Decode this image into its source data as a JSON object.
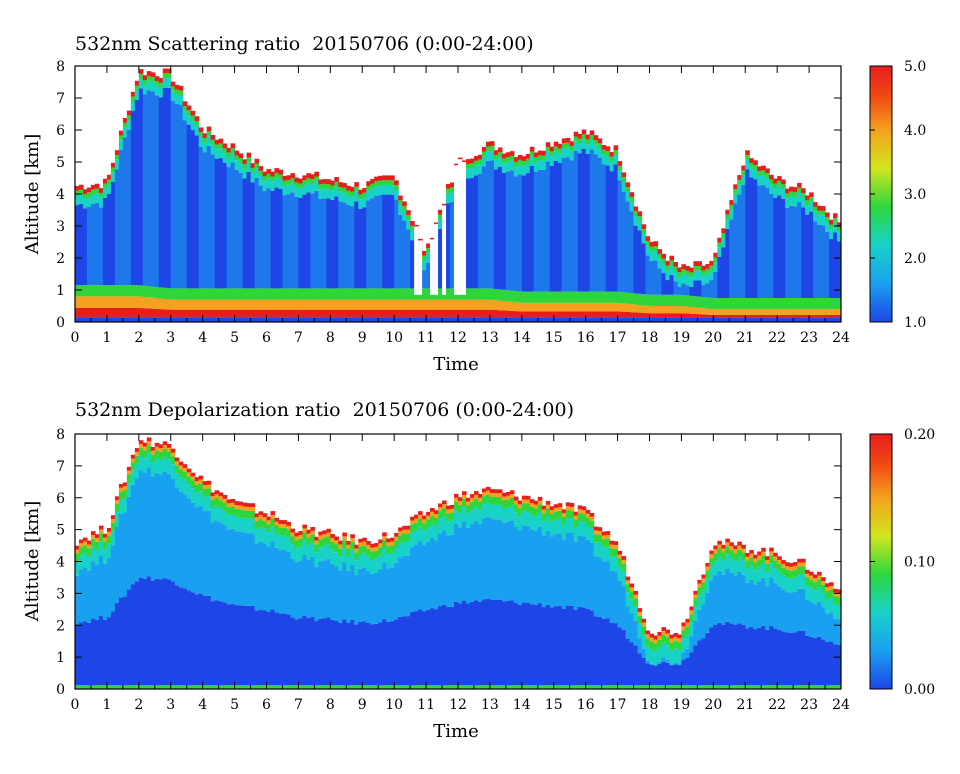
{
  "charts": [
    {
      "title": "532nm Scattering ratio  20150706 (0:00-24:00)",
      "xlabel": "Time",
      "ylabel": "Altitude [km]"
    },
    {
      "title": "532nm Depolarization ratio  20150706 (0:00-24:00)",
      "xlabel": "Time",
      "ylabel": "Altitude [km]"
    }
  ],
  "chart_data": [
    {
      "type": "heatmap",
      "title": "532nm Scattering ratio  20150706 (0:00-24:00)",
      "xlabel": "Time",
      "ylabel": "Altitude [km]",
      "xlim": [
        0,
        24
      ],
      "ylim": [
        0,
        8
      ],
      "x_ticks": [
        "0",
        "1",
        "2",
        "3",
        "4",
        "5",
        "6",
        "7",
        "8",
        "9",
        "10",
        "11",
        "12",
        "13",
        "14",
        "15",
        "16",
        "17",
        "18",
        "19",
        "20",
        "21",
        "22",
        "23",
        "24"
      ],
      "y_ticks": [
        "0",
        "1",
        "2",
        "3",
        "4",
        "5",
        "6",
        "7",
        "8"
      ],
      "colorbar": {
        "range": [
          1.0,
          5.0
        ],
        "tick_labels": [
          "1.0",
          "2.0",
          "3.0",
          "4.0",
          "5.0"
        ],
        "colors": [
          "#1e46e6",
          "#19a0f0",
          "#18d2c8",
          "#2ed63c",
          "#d2e61e",
          "#f5a01e",
          "#f04a14",
          "#e61e1e"
        ]
      },
      "cloud_top_km": [
        4.2,
        4.3,
        7.8,
        7.7,
        6.0,
        5.4,
        4.7,
        4.6,
        4.4,
        4.2,
        4.5,
        2.2,
        5.0,
        5.5,
        5.2,
        5.6,
        5.9,
        5.3,
        2.5,
        1.6,
        1.8,
        5.2,
        4.4,
        4.0,
        3.0
      ],
      "boundary_layer_top_km": [
        0.8,
        0.8,
        0.8,
        0.7,
        0.7,
        0.7,
        0.7,
        0.7,
        0.7,
        0.7,
        0.7,
        0.7,
        0.7,
        0.7,
        0.6,
        0.6,
        0.6,
        0.6,
        0.5,
        0.5,
        0.4,
        0.4,
        0.4,
        0.4,
        0.4
      ]
    },
    {
      "type": "heatmap",
      "title": "532nm Depolarization ratio  20150706 (0:00-24:00)",
      "xlabel": "Time",
      "ylabel": "Altitude [km]",
      "xlim": [
        0,
        24
      ],
      "ylim": [
        0,
        8
      ],
      "x_ticks": [
        "0",
        "1",
        "2",
        "3",
        "4",
        "5",
        "6",
        "7",
        "8",
        "9",
        "10",
        "11",
        "12",
        "13",
        "14",
        "15",
        "16",
        "17",
        "18",
        "19",
        "20",
        "21",
        "22",
        "23",
        "24"
      ],
      "y_ticks": [
        "0",
        "1",
        "2",
        "3",
        "4",
        "5",
        "6",
        "7",
        "8"
      ],
      "colorbar": {
        "range": [
          0.0,
          0.2
        ],
        "tick_labels": [
          "0.00",
          "0.10",
          "0.20"
        ],
        "colors": [
          "#1e46e6",
          "#19a0f0",
          "#18d2c8",
          "#2ed63c",
          "#d2e61e",
          "#f5a01e",
          "#f04a14",
          "#e61e1e"
        ]
      },
      "cloud_top_km": [
        4.6,
        5.0,
        7.8,
        7.6,
        6.5,
        5.8,
        5.5,
        5.0,
        4.8,
        4.6,
        4.8,
        5.5,
        6.0,
        6.2,
        6.0,
        5.8,
        5.5,
        4.5,
        1.8,
        1.8,
        4.6,
        4.4,
        4.2,
        3.8,
        3.0
      ]
    }
  ],
  "colors": {
    "blue": "#1e46e6",
    "cyan": "#18d2c8",
    "green": "#2ed63c",
    "yellow": "#d2e61e",
    "orange": "#f5a01e",
    "red": "#e61e1e"
  }
}
